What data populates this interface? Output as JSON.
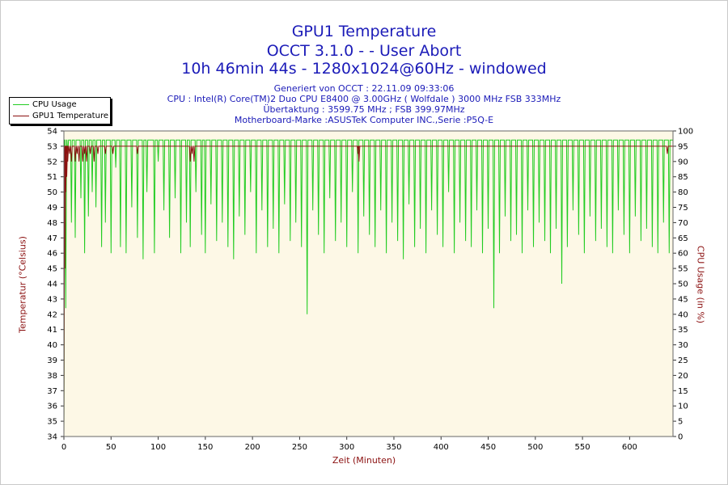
{
  "header": {
    "title_line1": "GPU1 Temperature",
    "title_line2": "OCCT 3.1.0 -  - User Abort",
    "title_line3": "10h 46min 44s - 1280x1024@60Hz - windowed",
    "info_line1": "Generiert von OCCT : 22.11.09 09:33:06",
    "info_line2": "CPU : Intel(R) Core(TM)2 Duo CPU E8400 @ 3.00GHz ( Wolfdale ) 3000 MHz FSB 333MHz",
    "info_line3": "Übertaktung : 3599.75 MHz ; FSB 399.97MHz",
    "info_line4": "Motherboard-Marke :ASUSTeK Computer INC.,Serie :P5Q-E"
  },
  "colors": {
    "plot_background": "#fdf8e6",
    "cpu_usage": "#22cc22",
    "gpu_temperature": "#8b1010",
    "grid": "#dddddd"
  },
  "chart_data": {
    "type": "line",
    "xlabel": "Zeit (Minuten)",
    "ylabel": "Temperatur (°Celsius)",
    "ylabel_right": "CPU Usage (in %)",
    "xlim": [
      0,
      646
    ],
    "ylim": [
      34,
      54
    ],
    "ylim_right": [
      0,
      100
    ],
    "x_ticks": [
      0,
      50,
      100,
      150,
      200,
      250,
      300,
      350,
      400,
      450,
      500,
      550,
      600
    ],
    "y_ticks": [
      34,
      35,
      36,
      37,
      38,
      39,
      40,
      41,
      42,
      43,
      44,
      45,
      46,
      47,
      48,
      49,
      50,
      51,
      52,
      53,
      54
    ],
    "y_ticks_right": [
      0,
      5,
      10,
      15,
      20,
      25,
      30,
      35,
      40,
      45,
      50,
      55,
      60,
      65,
      70,
      75,
      80,
      85,
      90,
      95,
      100
    ],
    "grid": false,
    "legend_position": "top-left",
    "series": [
      {
        "name": "CPU Usage",
        "axis": "right",
        "baseline": 97,
        "x": [
          0,
          2,
          4,
          8,
          12,
          18,
          22,
          26,
          30,
          34,
          40,
          44,
          50,
          55,
          60,
          66,
          72,
          78,
          84,
          88,
          96,
          100,
          106,
          112,
          118,
          124,
          130,
          134,
          140,
          146,
          150,
          156,
          162,
          168,
          174,
          180,
          186,
          192,
          198,
          204,
          210,
          216,
          222,
          228,
          234,
          240,
          246,
          252,
          258,
          264,
          270,
          276,
          282,
          288,
          294,
          300,
          306,
          312,
          318,
          324,
          330,
          336,
          342,
          348,
          354,
          360,
          366,
          372,
          378,
          384,
          390,
          396,
          402,
          408,
          414,
          420,
          426,
          432,
          438,
          444,
          450,
          456,
          462,
          468,
          474,
          480,
          486,
          492,
          498,
          504,
          510,
          516,
          522,
          528,
          534,
          540,
          546,
          552,
          558,
          564,
          570,
          576,
          582,
          588,
          594,
          600,
          606,
          612,
          618,
          624,
          630,
          636,
          642
        ],
        "values": [
          0,
          42,
          92,
          70,
          65,
          78,
          60,
          72,
          80,
          75,
          62,
          70,
          60,
          88,
          62,
          60,
          75,
          65,
          58,
          80,
          60,
          90,
          74,
          65,
          78,
          60,
          70,
          62,
          80,
          66,
          60,
          76,
          64,
          70,
          62,
          58,
          72,
          66,
          80,
          60,
          74,
          62,
          68,
          60,
          76,
          64,
          70,
          62,
          40,
          74,
          66,
          60,
          78,
          64,
          70,
          62,
          80,
          60,
          72,
          66,
          62,
          74,
          60,
          70,
          64,
          58,
          76,
          62,
          68,
          60,
          74,
          66,
          62,
          80,
          60,
          70,
          64,
          62,
          74,
          60,
          68,
          42,
          60,
          72,
          64,
          66,
          60,
          74,
          62,
          70,
          64,
          60,
          68,
          50,
          62,
          74,
          66,
          60,
          72,
          64,
          68,
          62,
          60,
          74,
          66,
          60,
          72,
          64,
          68,
          62,
          60,
          70,
          60
        ]
      },
      {
        "name": "GPU1 Temperature",
        "axis": "left",
        "baseline": 53,
        "x": [
          0,
          1,
          2,
          3,
          4,
          6,
          8,
          10,
          12,
          14,
          16,
          18,
          20,
          22,
          24,
          26,
          28,
          30,
          32,
          36,
          40,
          44,
          50,
          52,
          60,
          70,
          78,
          80,
          90,
          100,
          110,
          120,
          134,
          136,
          138,
          140,
          150,
          200,
          250,
          300,
          312,
          313,
          314,
          400,
          450,
          500,
          550,
          600,
          640,
          646
        ],
        "values": [
          34,
          45,
          50,
          51,
          52,
          52.5,
          52,
          53,
          52,
          52.5,
          52,
          53,
          52,
          52.5,
          52,
          53,
          52.5,
          53,
          52,
          52.5,
          53,
          52.5,
          53,
          52.5,
          53,
          53,
          52.5,
          53,
          53,
          53,
          53,
          53,
          52,
          52.5,
          52,
          53,
          53,
          53,
          53,
          53,
          52.5,
          52,
          53,
          53,
          53,
          53,
          53,
          53,
          52.5,
          53
        ]
      }
    ]
  }
}
